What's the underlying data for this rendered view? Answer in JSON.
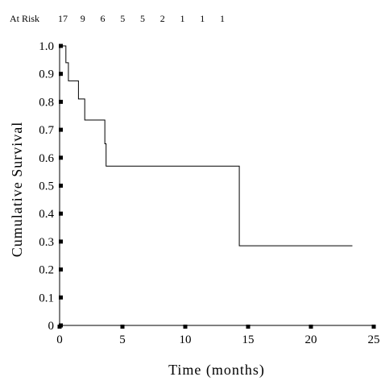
{
  "chart_data": {
    "type": "line",
    "step": true,
    "title": "",
    "xlabel": "Time (months)",
    "ylabel": "Cumulative Survival",
    "xlim": [
      0,
      25
    ],
    "ylim": [
      0,
      1.0
    ],
    "x_ticks": [
      "0",
      "5",
      "10",
      "15",
      "20",
      "25"
    ],
    "y_ticks": [
      "0",
      "0.1",
      "0.2",
      "0.3",
      "0.4",
      "0.5",
      "0.6",
      "0.7",
      "0.8",
      "0.9",
      "1.0"
    ],
    "grid": false,
    "at_risk": {
      "label": "At Risk",
      "counts": [
        "17",
        "9",
        "6",
        "5",
        "5",
        "2",
        "1",
        "1",
        "1"
      ]
    },
    "series": [
      {
        "x": [
          0,
          0.5,
          0.7,
          1.5,
          2.0,
          3.6,
          3.7,
          14.3,
          23.3
        ],
        "y": [
          1.0,
          0.94,
          0.875,
          0.81,
          0.735,
          0.65,
          0.57,
          0.285,
          0.285
        ]
      }
    ]
  }
}
